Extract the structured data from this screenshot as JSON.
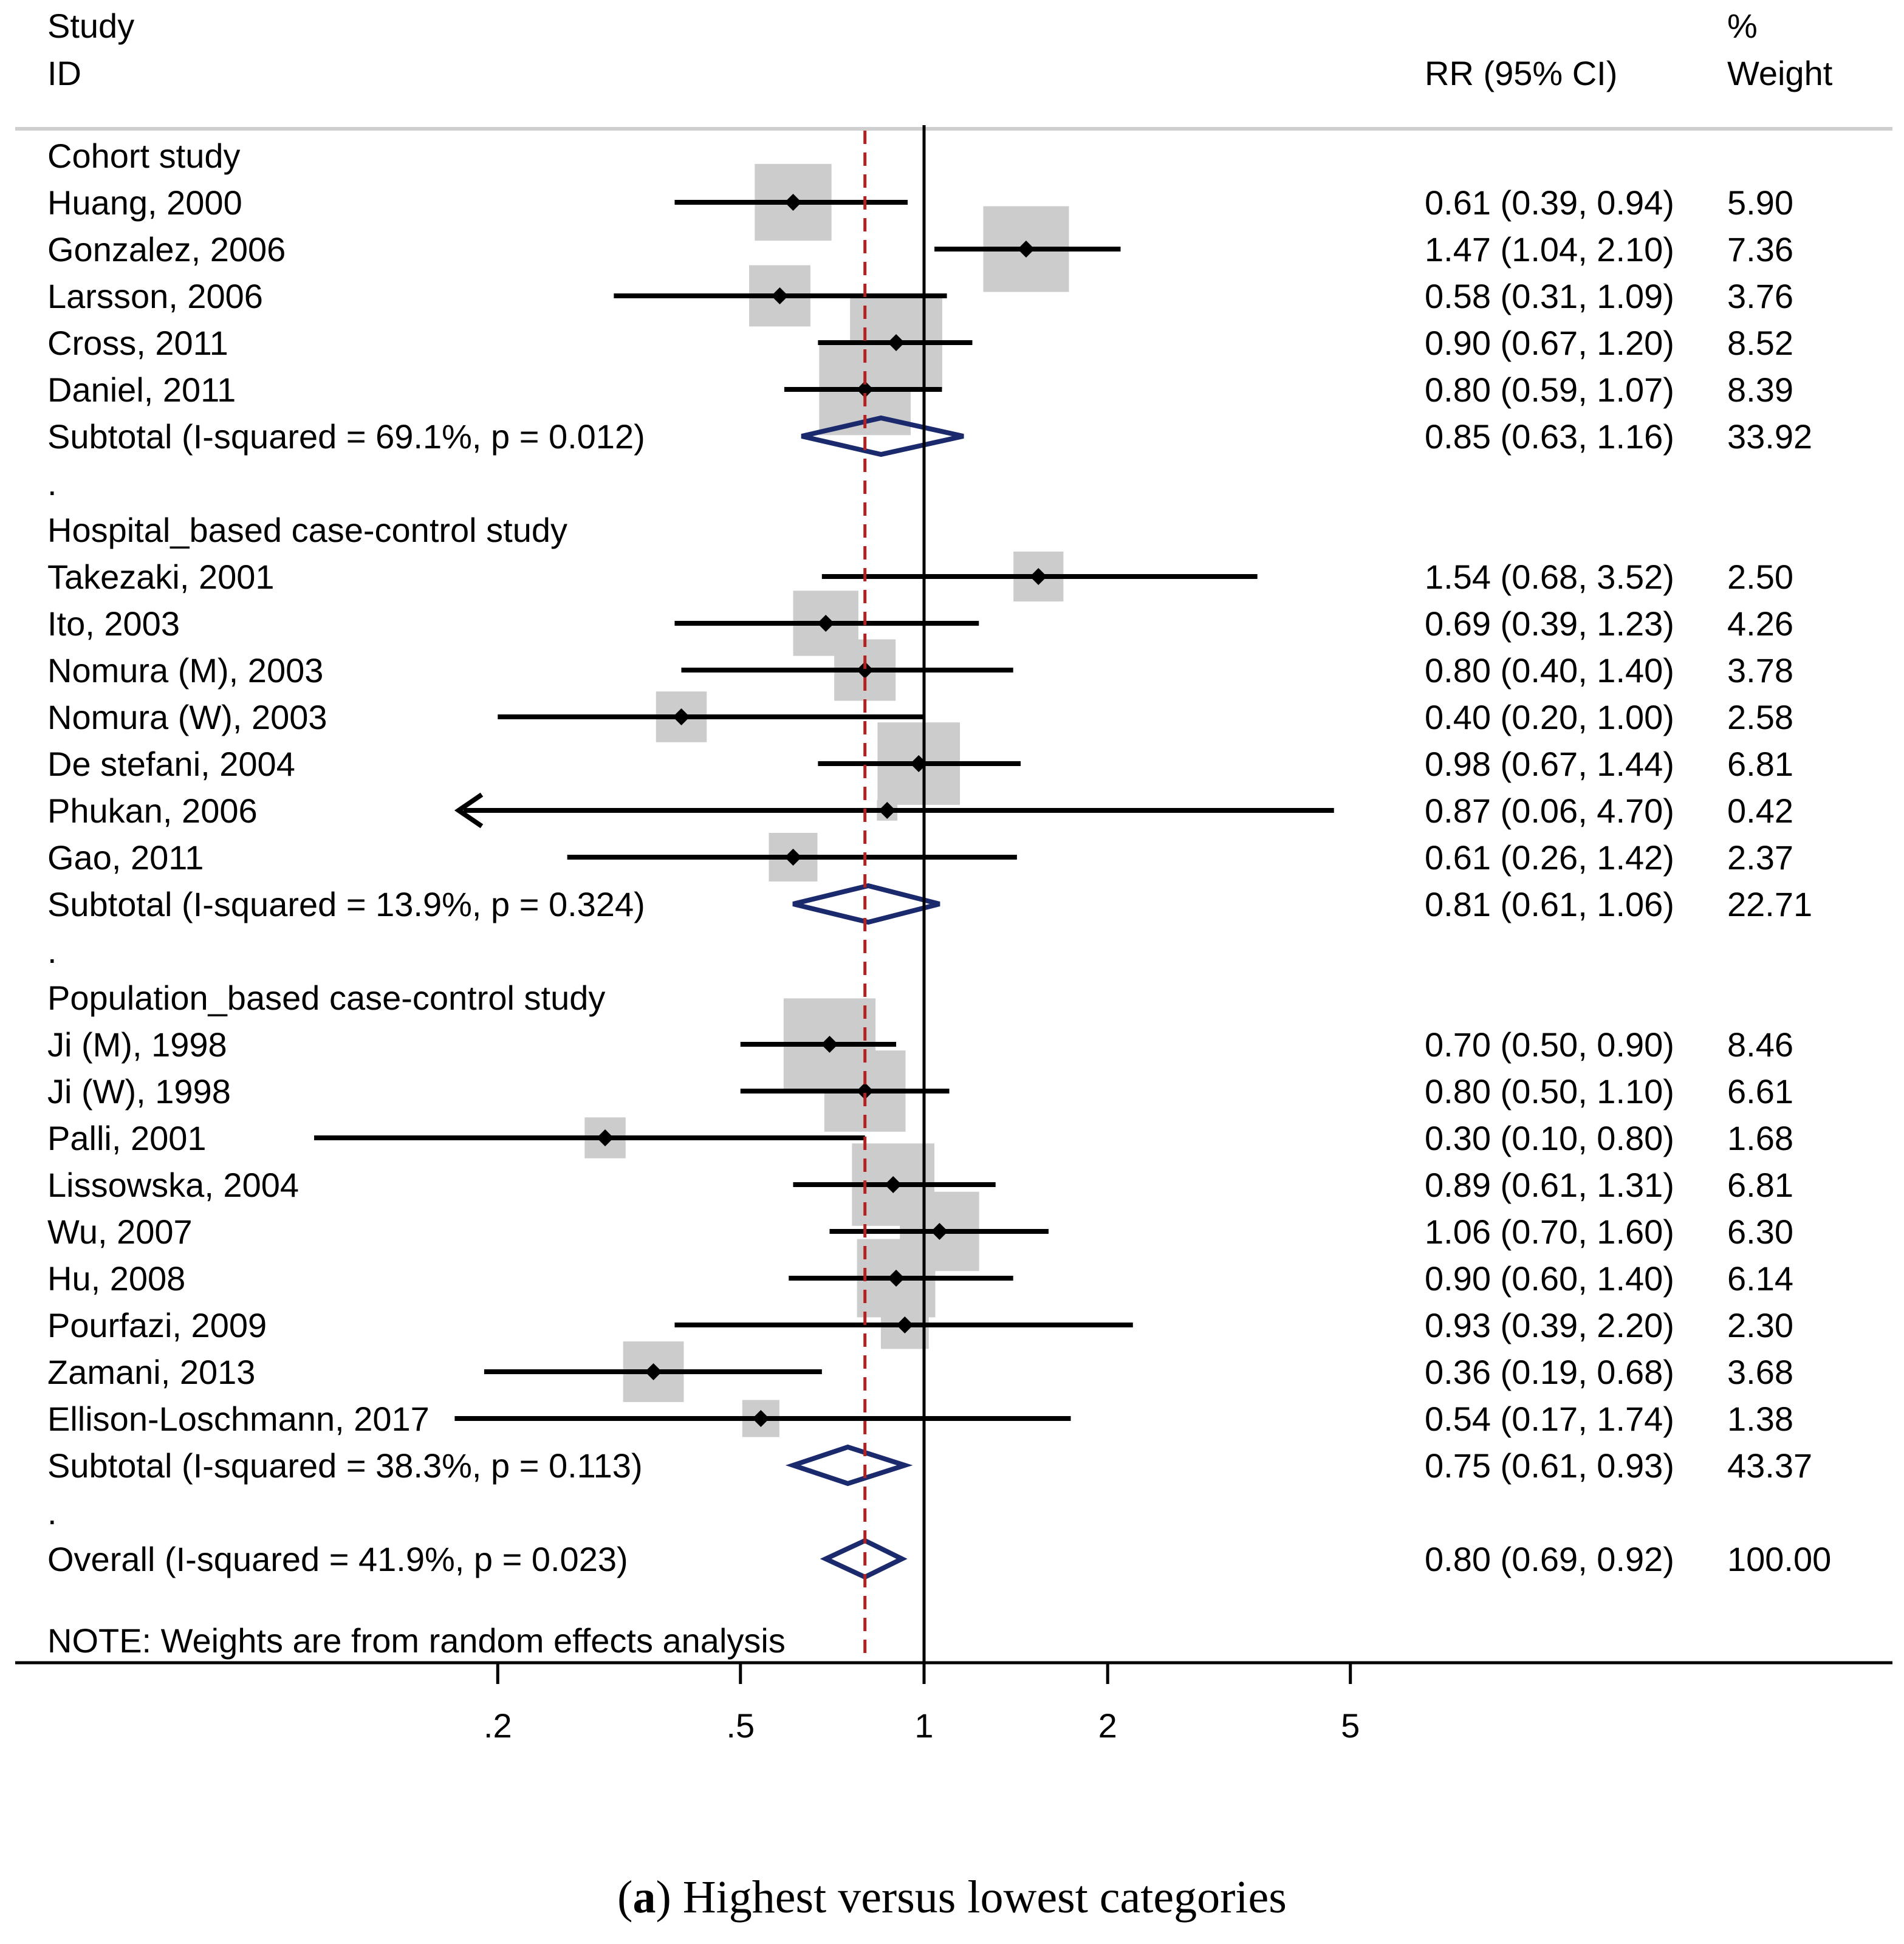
{
  "header": {
    "study_line1": "Study",
    "study_line2": "ID",
    "rr_label": "RR (95% CI)",
    "weight_line1": "%",
    "weight_line2": "Weight"
  },
  "caption": {
    "letter": "a",
    "text": "Highest versus lowest categories"
  },
  "note": "NOTE: Weights are from random effects analysis",
  "colors": {
    "box": "#cccccc",
    "diamond": "#1a2a6c",
    "null_line": "#000000",
    "overall_line": "#b22222"
  },
  "chart_data": {
    "type": "forest",
    "scale": "log",
    "null_value": 1,
    "overall_estimate": 0.8,
    "x_ticks": [
      0.2,
      0.5,
      1,
      2,
      5
    ],
    "x_tick_labels": [
      ".2",
      ".5",
      "1",
      "2",
      "5"
    ],
    "rows": [
      {
        "kind": "group",
        "label": "Cohort study"
      },
      {
        "kind": "study",
        "label": "Huang, 2000",
        "rr": 0.61,
        "lo": 0.39,
        "hi": 0.94,
        "ci_text": "0.61 (0.39, 0.94)",
        "weight": 5.9,
        "weight_text": "5.90"
      },
      {
        "kind": "study",
        "label": "Gonzalez, 2006",
        "rr": 1.47,
        "lo": 1.04,
        "hi": 2.1,
        "ci_text": "1.47 (1.04, 2.10)",
        "weight": 7.36,
        "weight_text": "7.36"
      },
      {
        "kind": "study",
        "label": "Larsson, 2006",
        "rr": 0.58,
        "lo": 0.31,
        "hi": 1.09,
        "ci_text": "0.58 (0.31, 1.09)",
        "weight": 3.76,
        "weight_text": "3.76"
      },
      {
        "kind": "study",
        "label": "Cross, 2011",
        "rr": 0.9,
        "lo": 0.67,
        "hi": 1.2,
        "ci_text": "0.90 (0.67, 1.20)",
        "weight": 8.52,
        "weight_text": "8.52"
      },
      {
        "kind": "study",
        "label": "Daniel, 2011",
        "rr": 0.8,
        "lo": 0.59,
        "hi": 1.07,
        "ci_text": "0.80 (0.59, 1.07)",
        "weight": 8.39,
        "weight_text": "8.39"
      },
      {
        "kind": "subtotal",
        "label": "Subtotal  (I-squared = 69.1%, p = 0.012)",
        "rr": 0.85,
        "lo": 0.63,
        "hi": 1.16,
        "ci_text": "0.85 (0.63, 1.16)",
        "weight": 33.92,
        "weight_text": "33.92"
      },
      {
        "kind": "spacer",
        "label": "."
      },
      {
        "kind": "group",
        "label": "Hospital_based case-control study"
      },
      {
        "kind": "study",
        "label": "Takezaki, 2001",
        "rr": 1.54,
        "lo": 0.68,
        "hi": 3.52,
        "ci_text": "1.54 (0.68, 3.52)",
        "weight": 2.5,
        "weight_text": "2.50"
      },
      {
        "kind": "study",
        "label": "Ito, 2003",
        "rr": 0.69,
        "lo": 0.39,
        "hi": 1.23,
        "ci_text": "0.69 (0.39, 1.23)",
        "weight": 4.26,
        "weight_text": "4.26"
      },
      {
        "kind": "study",
        "label": "Nomura (M), 2003",
        "rr": 0.8,
        "lo": 0.4,
        "hi": 1.4,
        "ci_text": "0.80 (0.40, 1.40)",
        "weight": 3.78,
        "weight_text": "3.78"
      },
      {
        "kind": "study",
        "label": "Nomura (W), 2003",
        "rr": 0.4,
        "lo": 0.2,
        "hi": 1.0,
        "ci_text": "0.40 (0.20, 1.00)",
        "weight": 2.58,
        "weight_text": "2.58"
      },
      {
        "kind": "study",
        "label": "De stefani, 2004",
        "rr": 0.98,
        "lo": 0.67,
        "hi": 1.44,
        "ci_text": "0.98 (0.67, 1.44)",
        "weight": 6.81,
        "weight_text": "6.81"
      },
      {
        "kind": "study",
        "label": "Phukan, 2006",
        "rr": 0.87,
        "lo": 0.06,
        "hi": 4.7,
        "ci_text": "0.87 (0.06, 4.70)",
        "weight": 0.42,
        "weight_text": "0.42",
        "arrow_left": true
      },
      {
        "kind": "study",
        "label": "Gao, 2011",
        "rr": 0.61,
        "lo": 0.26,
        "hi": 1.42,
        "ci_text": "0.61 (0.26, 1.42)",
        "weight": 2.37,
        "weight_text": "2.37"
      },
      {
        "kind": "subtotal",
        "label": "Subtotal  (I-squared = 13.9%, p = 0.324)",
        "rr": 0.81,
        "lo": 0.61,
        "hi": 1.06,
        "ci_text": "0.81 (0.61, 1.06)",
        "weight": 22.71,
        "weight_text": "22.71"
      },
      {
        "kind": "spacer",
        "label": "."
      },
      {
        "kind": "group",
        "label": "Population_based case-control study"
      },
      {
        "kind": "study",
        "label": "Ji (M), 1998",
        "rr": 0.7,
        "lo": 0.5,
        "hi": 0.9,
        "ci_text": "0.70 (0.50, 0.90)",
        "weight": 8.46,
        "weight_text": "8.46"
      },
      {
        "kind": "study",
        "label": "Ji (W), 1998",
        "rr": 0.8,
        "lo": 0.5,
        "hi": 1.1,
        "ci_text": "0.80 (0.50, 1.10)",
        "weight": 6.61,
        "weight_text": "6.61"
      },
      {
        "kind": "study",
        "label": "Palli, 2001",
        "rr": 0.3,
        "lo": 0.1,
        "hi": 0.8,
        "ci_text": "0.30 (0.10, 0.80)",
        "weight": 1.68,
        "weight_text": "1.68"
      },
      {
        "kind": "study",
        "label": "Lissowska, 2004",
        "rr": 0.89,
        "lo": 0.61,
        "hi": 1.31,
        "ci_text": "0.89 (0.61, 1.31)",
        "weight": 6.81,
        "weight_text": "6.81"
      },
      {
        "kind": "study",
        "label": "Wu, 2007",
        "rr": 1.06,
        "lo": 0.7,
        "hi": 1.6,
        "ci_text": "1.06 (0.70, 1.60)",
        "weight": 6.3,
        "weight_text": "6.30"
      },
      {
        "kind": "study",
        "label": "Hu, 2008",
        "rr": 0.9,
        "lo": 0.6,
        "hi": 1.4,
        "ci_text": "0.90 (0.60, 1.40)",
        "weight": 6.14,
        "weight_text": "6.14"
      },
      {
        "kind": "study",
        "label": "Pourfazi, 2009",
        "rr": 0.93,
        "lo": 0.39,
        "hi": 2.2,
        "ci_text": "0.93 (0.39, 2.20)",
        "weight": 2.3,
        "weight_text": "2.30"
      },
      {
        "kind": "study",
        "label": "Zamani, 2013",
        "rr": 0.36,
        "lo": 0.19,
        "hi": 0.68,
        "ci_text": "0.36 (0.19, 0.68)",
        "weight": 3.68,
        "weight_text": "3.68"
      },
      {
        "kind": "study",
        "label": "Ellison-Loschmann, 2017",
        "rr": 0.54,
        "lo": 0.17,
        "hi": 1.74,
        "ci_text": "0.54 (0.17, 1.74)",
        "weight": 1.38,
        "weight_text": "1.38"
      },
      {
        "kind": "subtotal",
        "label": "Subtotal  (I-squared = 38.3%, p = 0.113)",
        "rr": 0.75,
        "lo": 0.61,
        "hi": 0.93,
        "ci_text": "0.75 (0.61, 0.93)",
        "weight": 43.37,
        "weight_text": "43.37"
      },
      {
        "kind": "spacer",
        "label": "."
      },
      {
        "kind": "overall",
        "label": "Overall  (I-squared = 41.9%, p = 0.023)",
        "rr": 0.8,
        "lo": 0.69,
        "hi": 0.92,
        "ci_text": "0.80 (0.69, 0.92)",
        "weight": 100.0,
        "weight_text": "100.00"
      }
    ]
  }
}
